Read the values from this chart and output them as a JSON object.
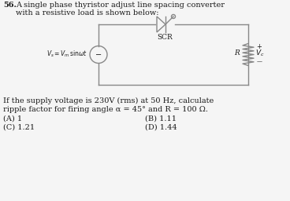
{
  "question_num": "56.",
  "title_line1": "A single phase thyristor adjust line spacing converter",
  "title_line2": "with a resistive load is shown below:",
  "body_line1": "If the supply voltage is 230V (rms) at 50 Hz, calculate",
  "body_line2": "ripple factor for firing angle α = 45° and R = 100 Ω.",
  "optA": "(A) 1",
  "optB": "(B) 1.11",
  "optC": "(C) 1.21",
  "optD": "(D) 1.44",
  "scr_label": "SCR",
  "bg_color": "#f5f5f5",
  "text_color": "#1a1a1a",
  "circuit_color": "#888888"
}
